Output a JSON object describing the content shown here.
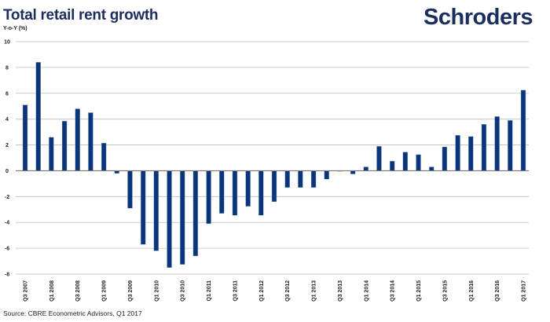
{
  "title": "Total retail rent growth",
  "logo_text": "Schroders",
  "source": "Source: CBRE Econometric Advisors, Q1 2017",
  "chart_data": {
    "type": "bar",
    "title": "Total retail rent growth",
    "ylabel": "Y-o-Y (%)",
    "xlabel": "",
    "ylim": [
      -8,
      10
    ],
    "yticks": [
      10,
      8,
      6,
      4,
      2,
      0,
      -2,
      -4,
      -6,
      -8
    ],
    "grid": true,
    "color": "#0a357a",
    "categories": [
      "Q3 2007",
      "Q4 2007",
      "Q1 2008",
      "Q2 2008",
      "Q3 2008",
      "Q4 2008",
      "Q1 2009",
      "Q2 2009",
      "Q3 2009",
      "Q4 2009",
      "Q1 2010",
      "Q2 2010",
      "Q3 2010",
      "Q4 2010",
      "Q1 2011",
      "Q2 2011",
      "Q3 2011",
      "Q4 2011",
      "Q1 2012",
      "Q2 2012",
      "Q3 2012",
      "Q4 2012",
      "Q1 2013",
      "Q2 2013",
      "Q3 2013",
      "Q4 2013",
      "Q1 2014",
      "Q2 2014",
      "Q3 2014",
      "Q4 2014",
      "Q1 2015",
      "Q2 2015",
      "Q3 2015",
      "Q4 2015",
      "Q1 2016",
      "Q2 2016",
      "Q3 2016",
      "Q4 2016",
      "Q1 2017"
    ],
    "tick_labels": [
      "Q3 2007",
      "Q1 2008",
      "Q3 2008",
      "Q1 2009",
      "Q3 2009",
      "Q1 2010",
      "Q3 2010",
      "Q1 2011",
      "Q3 2011",
      "Q1 2012",
      "Q3 2012",
      "Q1 2013",
      "Q3 2013",
      "Q1 2014",
      "Q3 2014",
      "Q1 2015",
      "Q3 2015",
      "Q1 2016",
      "Q3 2016",
      "Q1 2017"
    ],
    "values": [
      5.1,
      8.4,
      2.6,
      3.85,
      4.8,
      4.5,
      2.15,
      -0.2,
      -2.9,
      -5.7,
      -6.2,
      -7.5,
      -7.25,
      -6.6,
      -4.1,
      -3.3,
      -3.45,
      -2.75,
      -3.45,
      -2.4,
      -1.3,
      -1.3,
      -1.3,
      -0.65,
      -0.05,
      -0.25,
      0.3,
      1.9,
      0.75,
      1.45,
      1.25,
      0.3,
      1.85,
      2.75,
      2.65,
      3.6,
      4.2,
      3.9,
      6.25
    ]
  }
}
